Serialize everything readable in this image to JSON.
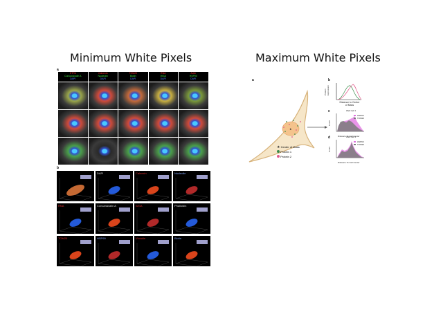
{
  "titles": {
    "left": "Minimum White Pixels",
    "right": "Maximum White Pixels"
  },
  "left_figure": {
    "panel_a_label": "a",
    "panel_b_label": "b",
    "grid_headers": [
      {
        "red": "HTPA",
        "green": "Concanavalin A",
        "blue": "DAPI"
      },
      {
        "red": "Calnexin",
        "green": "Nucleolin",
        "blue": "DAPI"
      },
      {
        "red": "TOM20",
        "green": "Biotin",
        "blue": "DAPI"
      },
      {
        "red": "RNA",
        "green": "WGA",
        "blue": "DAPI"
      },
      {
        "red": "Actin",
        "green": "HSP90",
        "blue": "DAPI"
      }
    ],
    "panel_b_cells": [
      {
        "label": "",
        "color": "#e87b3c"
      },
      {
        "label": "DAPI",
        "color": "#dddddd"
      },
      {
        "label": "Calnexin",
        "color": "#e03030"
      },
      {
        "label": "Nucleolin",
        "color": "#88aaff"
      },
      {
        "label": "RNA",
        "color": "#e03030"
      },
      {
        "label": "Concanavalin A",
        "color": "#dddddd"
      },
      {
        "label": "WGA",
        "color": "#e03030"
      },
      {
        "label": "Phalloidin",
        "color": "#dddddd"
      },
      {
        "label": "TOM20",
        "color": "#e03030"
      },
      {
        "label": "HSP90",
        "color": "#88aaff"
      },
      {
        "label": "Vinculin",
        "color": "#e03030"
      },
      {
        "label": "Biotin",
        "color": "#88aaff"
      }
    ]
  },
  "right_figure": {
    "panel_a_label": "a",
    "panel_b_label": "b",
    "panel_c_label": "c",
    "panel_d_label": "d",
    "legend": [
      "Center of Mass",
      "Protein 1",
      "Protein 2"
    ],
    "legend_colors": [
      "#222222",
      "#3a8a4a",
      "#e05a8a"
    ],
    "panel_b": {
      "ylabel": "Protein Expression",
      "xlabel": "Distance to Center of Mass"
    },
    "panel_c": {
      "ylabel": "Count",
      "xlabel": "Distance To Cell Center",
      "subtitle": "Well Cell 1",
      "legend": [
        "HSP90",
        "TOM20"
      ]
    },
    "panel_d": {
      "ylabel": "Count",
      "xlabel": "Distance To Cell Center",
      "subtitle": "Well Cell 1",
      "legend": [
        "HSP90",
        "TOM20"
      ]
    }
  }
}
